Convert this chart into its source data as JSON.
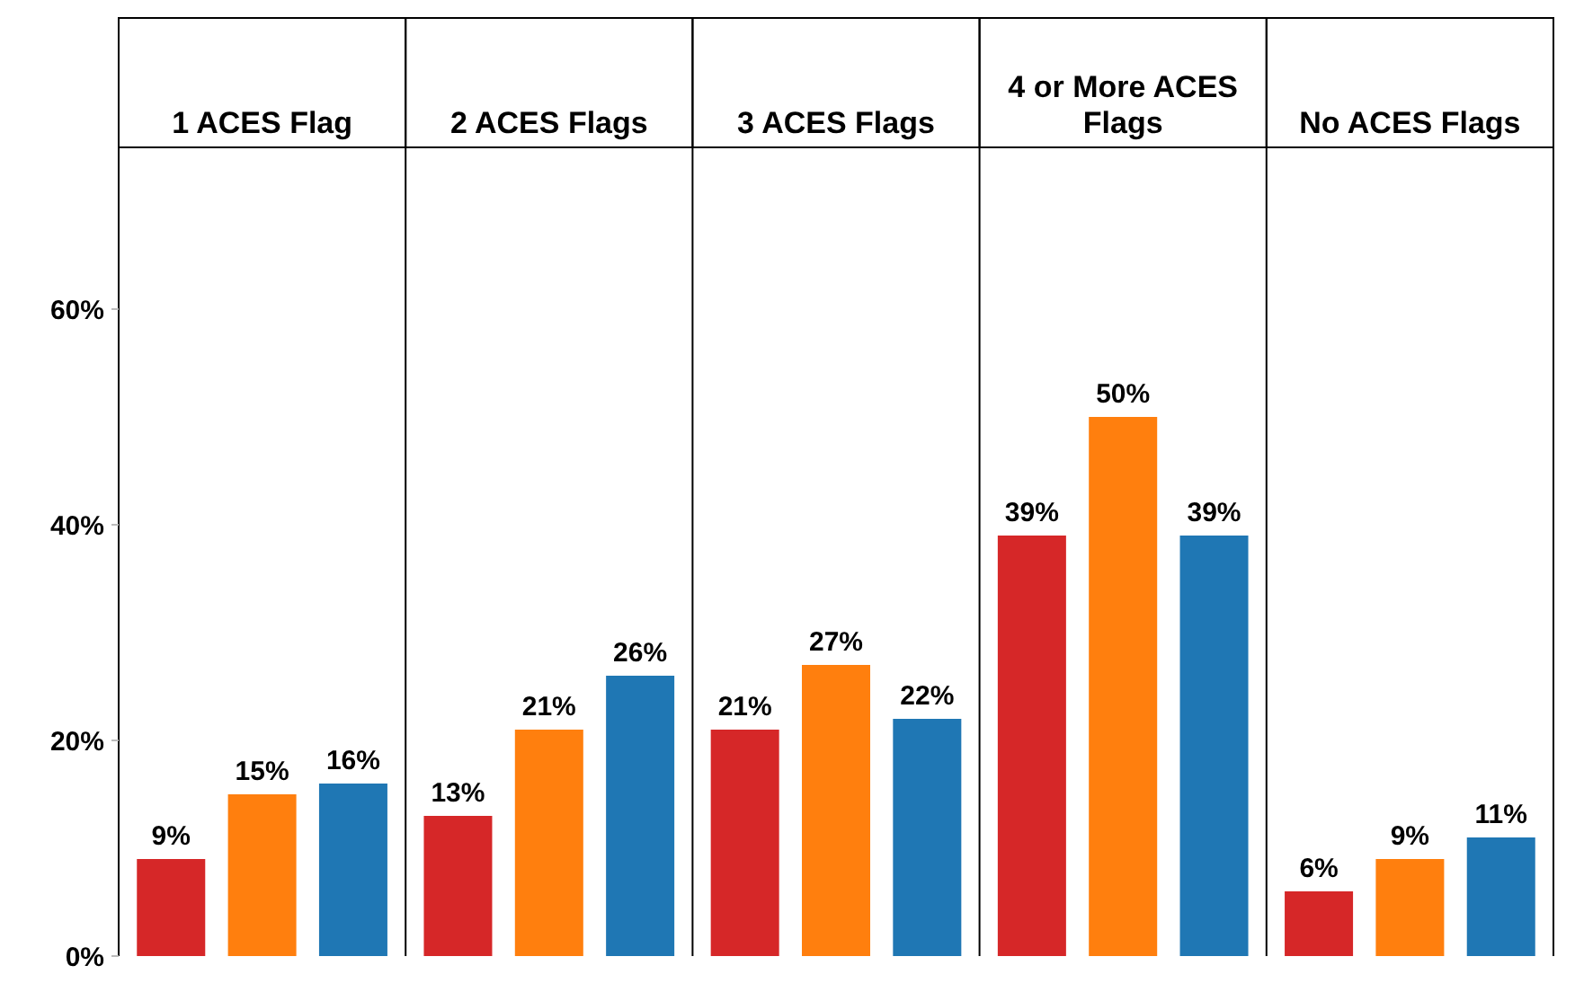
{
  "chart_data": {
    "type": "bar",
    "categories": [
      "1 ACES Flag",
      "2 ACES Flags",
      "3 ACES Flags",
      "4 or More ACES Flags",
      "No ACES Flags"
    ],
    "series": [
      {
        "color": "#d62728",
        "values": [
          9,
          13,
          21,
          39,
          6
        ],
        "value_labels": [
          "9%",
          "13%",
          "21%",
          "39%",
          "6%"
        ]
      },
      {
        "color": "#ff7f0e",
        "values": [
          15,
          21,
          27,
          50,
          9
        ],
        "value_labels": [
          "15%",
          "21%",
          "27%",
          "50%",
          "9%"
        ]
      },
      {
        "color": "#1f77b4",
        "values": [
          16,
          26,
          22,
          39,
          11
        ],
        "value_labels": [
          "16%",
          "26%",
          "22%",
          "39%",
          "11%"
        ]
      }
    ],
    "ylim": [
      0,
      75
    ],
    "yticks": [
      {
        "value": 0,
        "label": "0%"
      },
      {
        "value": 20,
        "label": "20%"
      },
      {
        "value": 40,
        "label": "40%"
      },
      {
        "value": 60,
        "label": "60%"
      }
    ]
  }
}
